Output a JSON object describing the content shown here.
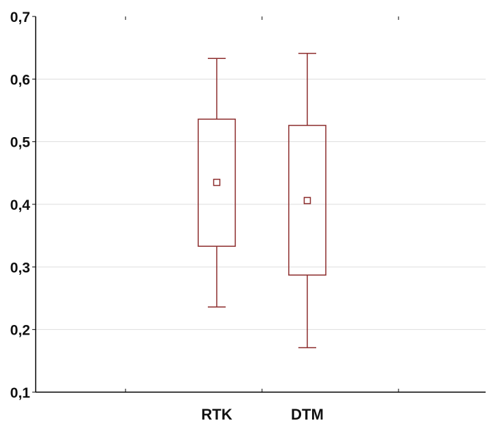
{
  "chart_data": {
    "type": "box",
    "title": "",
    "xlabel": "",
    "ylabel": "",
    "categories": [
      "RTK",
      "DTM"
    ],
    "ylim": [
      0.1,
      0.7
    ],
    "yticks": [
      "0,1",
      "0,2",
      "0,3",
      "0,4",
      "0,5",
      "0,6",
      "0,7"
    ],
    "grid": true,
    "series": [
      {
        "category": "RTK",
        "whisker_low": 0.236,
        "box_low": 0.333,
        "mean": 0.435,
        "box_high": 0.536,
        "whisker_high": 0.633
      },
      {
        "category": "DTM",
        "whisker_low": 0.171,
        "box_low": 0.287,
        "mean": 0.406,
        "box_high": 0.526,
        "whisker_high": 0.641
      }
    ],
    "colors": {
      "box": "#8b2a2a",
      "grid": "#dddddd",
      "axis": "#000000"
    }
  }
}
